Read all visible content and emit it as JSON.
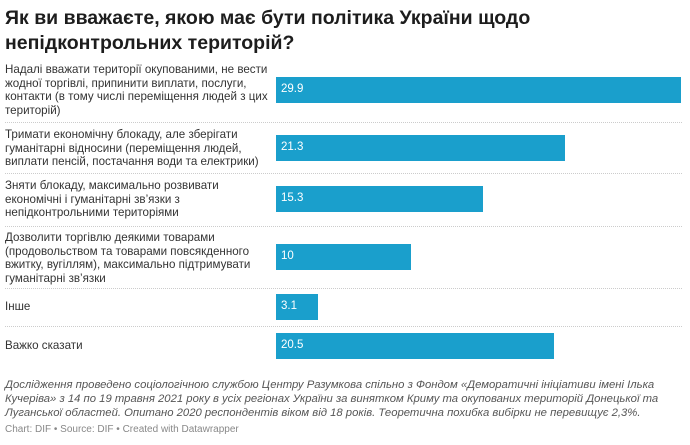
{
  "chart_data": {
    "type": "bar",
    "title": "Як ви вважаєте, якою має бути політика України щодо непідконтрольних територій?",
    "categories": [
      "Надалі вважати території окупованими, не вести жодної торгівлі, припинити виплати, послуги, контакти (в тому числі переміщення людей з цих територій)",
      "Тримати економічну блокаду, але зберігати гуманітарні відносини (переміщення людей, виплати пенсій, постачання води та електрики)",
      "Зняти блокаду, максимально розвивати економічні і гуманітарні зв’язки з непідконтрольними територіями",
      "Дозволити торгівлю деякими товарами (продовольством та товарами повсякденного вжитку, вугіллям), максимально підтримувати гуманітарні зв’язки",
      "Інше",
      "Важко сказати"
    ],
    "values": [
      29.9,
      21.3,
      15.3,
      10,
      3.1,
      20.5
    ],
    "value_labels": [
      "29.9",
      "21.3",
      "15.3",
      "10",
      "3.1",
      "20.5"
    ],
    "orientation": "horizontal",
    "data_labels": "inside-left",
    "bar_color": "#1a9fcc",
    "grid": false
  },
  "notes": "Дослідження проведено соціологічною службою Центру Разумкова спільно з Фондом «Деморатичні ініціативи імені Ілька Кучеріва» з 14 по 19 травня 2021 року в усіх регіонах України за винятком Криму та окупованих територій Донецької та Луганської областей. Опитано 2020 респондентів віком від 18 років. Теоретична похибка вибірки не перевищує 2,3%.",
  "byline": "Chart: DIF • Source: DIF • Created with Datawrapper"
}
